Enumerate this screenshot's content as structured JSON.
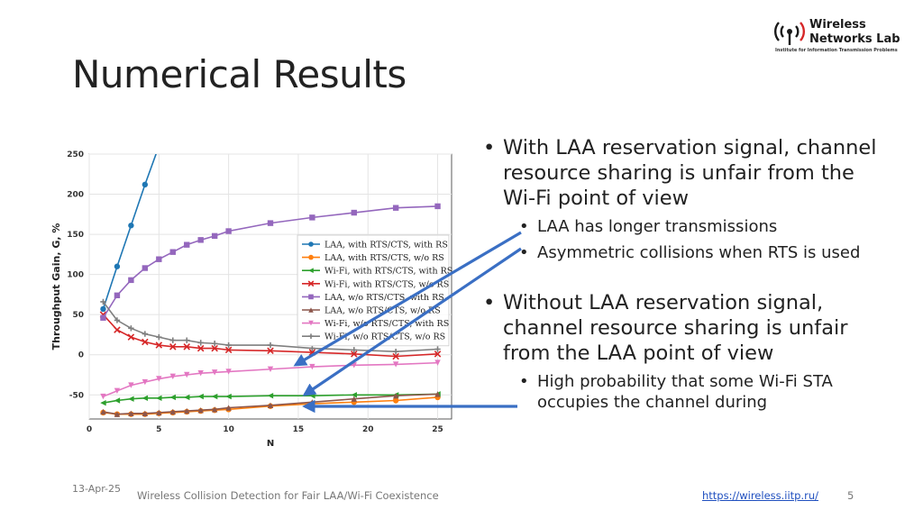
{
  "slide": {
    "title": "Numerical Results",
    "logo": {
      "line1": "Wireless",
      "line2": "Networks Lab",
      "subtitle": "Institute for Information Transmission Problems"
    },
    "bullets": [
      {
        "text": "With LAA reservation signal, channel resource sharing is unfair from the Wi-Fi point of view",
        "sub": [
          "LAA has longer transmissions",
          "Asymmetric collisions when RTS is used"
        ]
      },
      {
        "text": "Without LAA reservation signal, channel resource sharing is unfair from the LAA point of view",
        "sub": [
          "High probability that some Wi-Fi STA occupies the channel during"
        ]
      }
    ],
    "footer": {
      "date": "13-Apr-25",
      "title": "Wireless Collision Detection for Fair LAA/Wi-Fi Coexistence",
      "link": "https://wireless.iitp.ru/",
      "page": "5"
    },
    "colors": {
      "arrow": "#3a6fc4"
    }
  },
  "chart_data": {
    "type": "line",
    "xlabel": "N",
    "ylabel": "Throughput Gain, G, %",
    "xlim": [
      0,
      26
    ],
    "ylim": [
      -80,
      250
    ],
    "xticks": [
      0,
      5,
      10,
      15,
      20,
      25
    ],
    "yticks": [
      -50,
      0,
      50,
      100,
      150,
      200,
      250
    ],
    "grid": true,
    "legend_position": "center-right",
    "series": [
      {
        "name": "LAA, with RTS/CTS, with RS",
        "color": "#1f77b4",
        "marker": "circle",
        "x": [
          1,
          2,
          3,
          4,
          5
        ],
        "y": [
          57,
          110,
          161,
          212,
          260
        ]
      },
      {
        "name": "LAA, with RTS/CTS, w/o RS",
        "color": "#ff7f0e",
        "marker": "circle",
        "x": [
          1,
          2,
          3,
          4,
          5,
          6,
          7,
          8,
          9,
          10,
          13,
          16,
          19,
          22,
          25
        ],
        "y": [
          -72,
          -74,
          -74,
          -74,
          -73,
          -72,
          -71,
          -70,
          -69,
          -68,
          -64,
          -61,
          -59,
          -57,
          -53
        ]
      },
      {
        "name": "Wi-Fi, with RTS/CTS, with RS",
        "color": "#2ca02c",
        "marker": "triangle-left",
        "x": [
          1,
          2,
          3,
          4,
          5,
          6,
          7,
          8,
          9,
          10,
          13,
          16,
          19,
          22,
          25
        ],
        "y": [
          -60,
          -57,
          -55,
          -54,
          -54,
          -53,
          -53,
          -52,
          -52,
          -52,
          -51,
          -51,
          -50,
          -50,
          -49
        ]
      },
      {
        "name": "Wi-Fi, with RTS/CTS, w/o RS",
        "color": "#d62728",
        "marker": "x",
        "x": [
          1,
          2,
          3,
          4,
          5,
          6,
          7,
          8,
          9,
          10,
          13,
          16,
          19,
          22,
          25
        ],
        "y": [
          50,
          31,
          22,
          16,
          12,
          10,
          10,
          8,
          8,
          6,
          5,
          3,
          1,
          -2,
          1
        ]
      },
      {
        "name": "LAA, w/o RTS/CTS, with RS",
        "color": "#9467bd",
        "marker": "square",
        "x": [
          1,
          2,
          3,
          4,
          5,
          6,
          7,
          8,
          9,
          10,
          13,
          16,
          19,
          22,
          25
        ],
        "y": [
          46,
          74,
          93,
          108,
          119,
          128,
          137,
          143,
          148,
          154,
          164,
          171,
          177,
          183,
          185
        ]
      },
      {
        "name": "LAA, w/o RTS/CTS, w/o RS",
        "color": "#8c564b",
        "marker": "triangle-up",
        "x": [
          1,
          2,
          3,
          4,
          5,
          6,
          7,
          8,
          9,
          10,
          13,
          16,
          19,
          22,
          25
        ],
        "y": [
          -71,
          -74,
          -73,
          -73,
          -72,
          -71,
          -70,
          -69,
          -68,
          -66,
          -63,
          -59,
          -55,
          -51,
          -49
        ]
      },
      {
        "name": "Wi-Fi, w/o RTS/CTS, with RS",
        "color": "#e377c2",
        "marker": "triangle-down",
        "x": [
          1,
          2,
          3,
          4,
          5,
          6,
          7,
          8,
          9,
          10,
          13,
          16,
          19,
          22,
          25
        ],
        "y": [
          -52,
          -45,
          -38,
          -34,
          -30,
          -27,
          -25,
          -23,
          -22,
          -21,
          -18,
          -15,
          -13,
          -12,
          -10
        ]
      },
      {
        "name": "Wi-Fi, w/o RTS/CTS, w/o RS",
        "color": "#7f7f7f",
        "marker": "plus",
        "x": [
          1,
          2,
          3,
          4,
          5,
          6,
          7,
          8,
          9,
          10,
          13,
          16,
          19,
          22,
          25
        ],
        "y": [
          66,
          43,
          33,
          26,
          22,
          18,
          18,
          15,
          14,
          12,
          12,
          8,
          6,
          4,
          7
        ]
      }
    ]
  }
}
